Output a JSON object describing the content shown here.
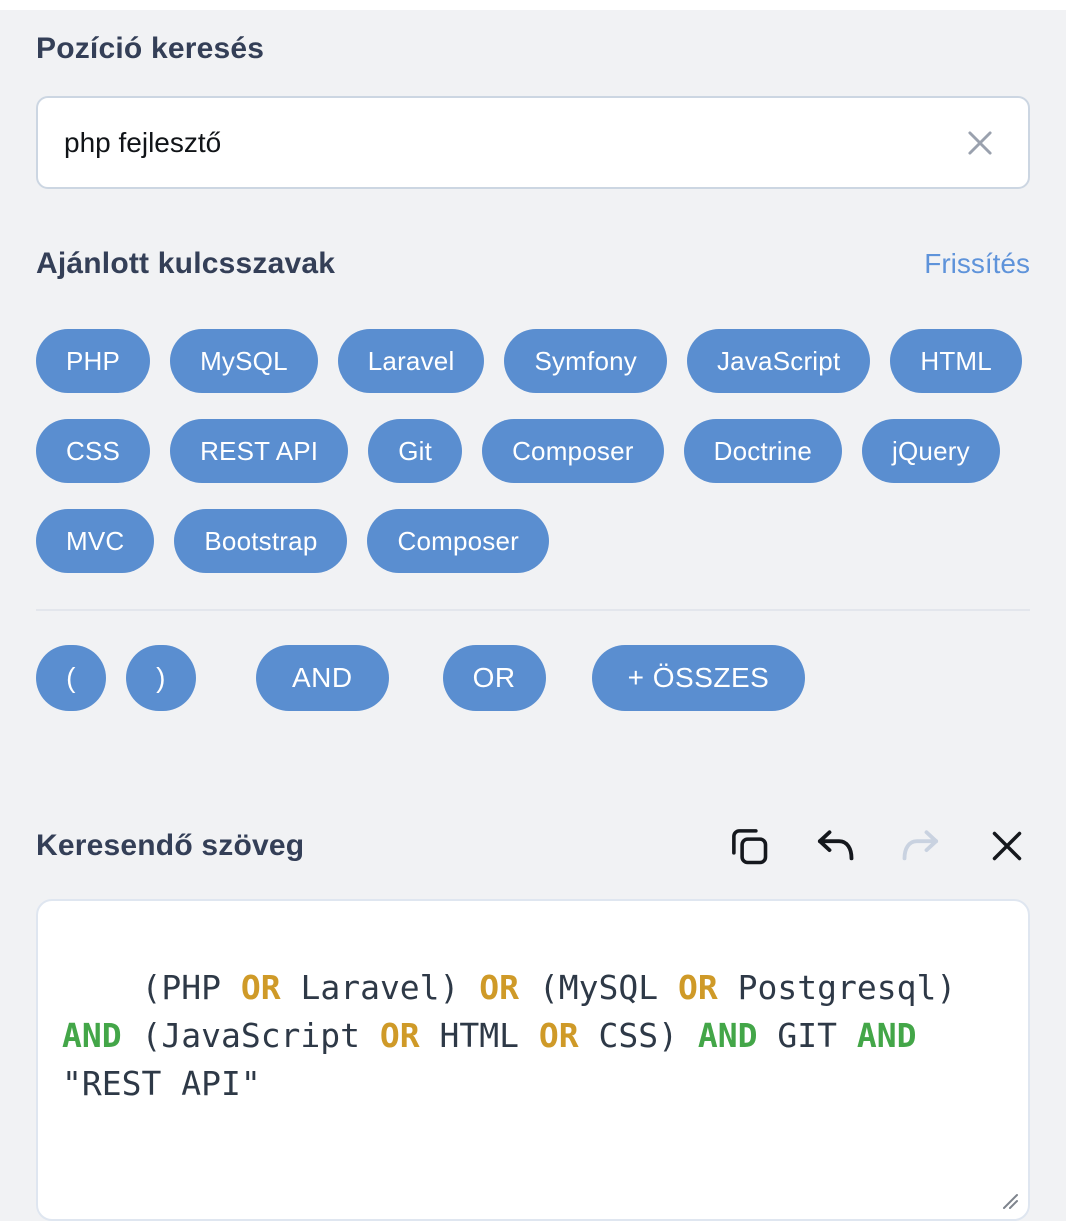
{
  "colors": {
    "page_bg": "#f1f2f4",
    "chip_blue": "#5a8ed0",
    "link_blue": "#5e93da",
    "heading": "#343f57",
    "or_token": "#cf9a28",
    "and_token": "#43a648"
  },
  "search": {
    "title": "Pozíció keresés",
    "value": "php fejlesztő",
    "clear_icon": "x-clear-icon"
  },
  "keywords": {
    "title": "Ajánlott kulcsszavak",
    "refresh_label": "Frissítés",
    "chips": [
      "PHP",
      "MySQL",
      "Laravel",
      "Symfony",
      "JavaScript",
      "HTML",
      "CSS",
      "REST API",
      "Git",
      "Composer",
      "Doctrine",
      "jQuery",
      "MVC",
      "Bootstrap",
      "Composer"
    ]
  },
  "operators": {
    "items": [
      {
        "label": "(",
        "kind": "paren"
      },
      {
        "label": ")",
        "kind": "paren"
      },
      {
        "label": "AND",
        "kind": "and"
      },
      {
        "label": "OR",
        "kind": "or"
      },
      {
        "label": "+ ÖSSZES",
        "kind": "all"
      }
    ]
  },
  "query": {
    "title": "Keresendő szöveg",
    "toolbar_icons": [
      "copy-icon",
      "undo-icon",
      "redo-icon",
      "close-icon"
    ],
    "redo_disabled": true,
    "text": "(PHP OR Laravel) OR (MySQL OR Postgresql) AND (JavaScript OR HTML OR CSS) AND GIT AND \"REST API\""
  }
}
